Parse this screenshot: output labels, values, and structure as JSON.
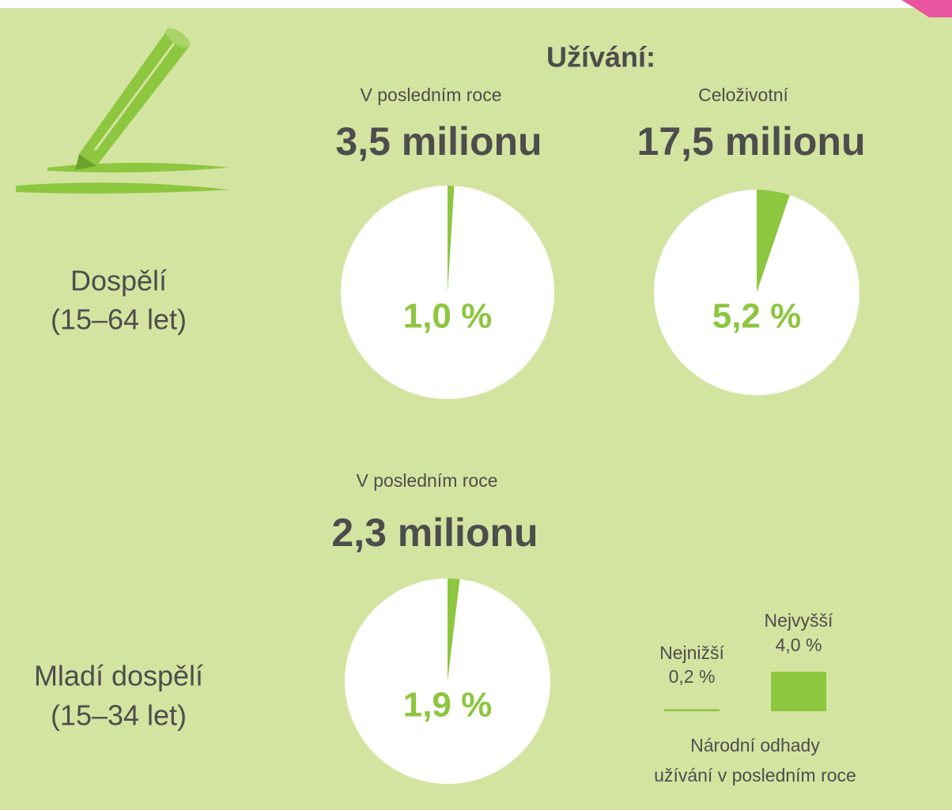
{
  "header": "Užívání:",
  "row_labels": [
    [
      "Dospělí",
      "(15–64 let)"
    ],
    [
      "Mladí dospělí",
      "(15–34 let)"
    ]
  ],
  "chart_data": [
    {
      "type": "pie",
      "title": "V posledním roce",
      "subtitle": "3,5 milionu",
      "values": [
        1.0
      ],
      "value_labels": [
        "1,0 %"
      ],
      "color": "#8dc63f"
    },
    {
      "type": "pie",
      "title": "Celoživotní",
      "subtitle": "17,5 milionu",
      "values": [
        5.2
      ],
      "value_labels": [
        "5,2 %"
      ],
      "color": "#8dc63f"
    },
    {
      "type": "pie",
      "title": "V posledním roce",
      "subtitle": "2,3 milionu",
      "values": [
        1.9
      ],
      "value_labels": [
        "1,9 %"
      ],
      "color": "#8dc63f"
    }
  ],
  "legend": {
    "low_label": "Nejnižší",
    "low": {
      "value": 0.2,
      "label": "0,2 %"
    },
    "high_label": "Nejvyšší",
    "high": {
      "value": 4.0,
      "label": "4,0 %"
    },
    "caption": [
      "Národní odhady",
      "užívání v posledním roce"
    ],
    "color": "#8dc63f"
  }
}
